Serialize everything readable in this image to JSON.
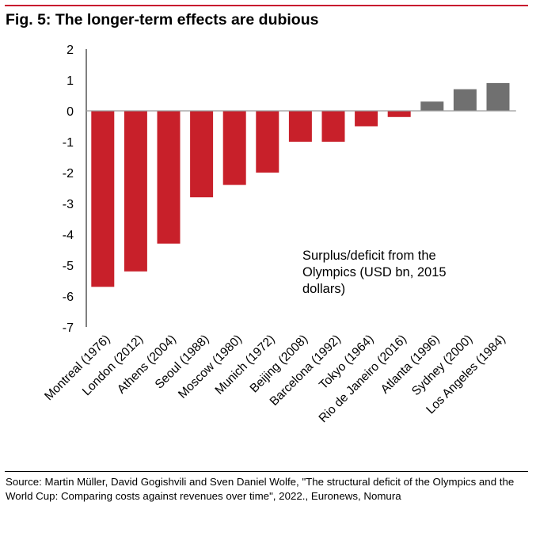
{
  "figure_title": "Fig. 5: The longer-term effects are dubious",
  "source": "Source: Martin Müller, David Gogishvili and Sven Daniel Wolfe, \"The structural deficit of the Olympics and the World Cup: Comparing costs against revenues over time\", 2022., Euronews, Nomura",
  "colors": {
    "deficit": "#c8202a",
    "surplus": "#707070",
    "accent_rule": "#c8102e"
  },
  "chart_data": {
    "type": "bar",
    "categories": [
      "Montreal (1976)",
      "London (2012)",
      "Athens (2004)",
      "Seoul (1988)",
      "Moscow (1980)",
      "Munich (1972)",
      "Beijing (2008)",
      "Barcelona (1992)",
      "Tokyo (1964)",
      "Rio de Janeiro (2016)",
      "Atlanta (1996)",
      "Sydney (2000)",
      "Los Angeles (1984)"
    ],
    "values": [
      -5.7,
      -5.2,
      -4.3,
      -2.8,
      -2.4,
      -2.0,
      -1.0,
      -1.0,
      -0.5,
      -0.2,
      0.3,
      0.7,
      0.9
    ],
    "ylim": [
      -7,
      2
    ],
    "yticks": [
      2,
      1,
      0,
      -1,
      -2,
      -3,
      -4,
      -5,
      -6,
      -7
    ],
    "annotation": "Surplus/deficit from the Olympics (USD bn, 2015 dollars)",
    "annotation_lines": [
      "Surplus/deficit from the",
      "Olympics (USD bn, 2015",
      "dollars)"
    ],
    "grid": false,
    "legend": "none"
  }
}
